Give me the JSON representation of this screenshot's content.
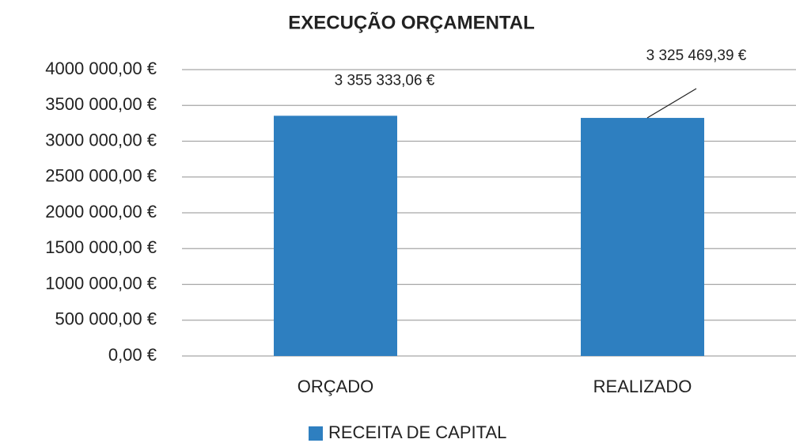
{
  "chart_data": {
    "type": "bar",
    "title": "EXECUÇÃO ORÇAMENTAL",
    "categories": [
      "ORÇADO",
      "REALIZADO"
    ],
    "series": [
      {
        "name": "RECEITA DE CAPITAL",
        "color": "#2e7fc0",
        "values": [
          3355333.06,
          3325469.39
        ],
        "value_labels": [
          "3 355 333,06 €",
          "3 325 469,39 €"
        ]
      }
    ],
    "ylim": [
      0,
      4000000
    ],
    "yticks": [
      {
        "value": 0,
        "label": "0,00 €"
      },
      {
        "value": 500000,
        "label": "500 000,00 €"
      },
      {
        "value": 1000000,
        "label": "1000 000,00 €"
      },
      {
        "value": 1500000,
        "label": "1500 000,00 €"
      },
      {
        "value": 2000000,
        "label": "2000 000,00 €"
      },
      {
        "value": 2500000,
        "label": "2500 000,00 €"
      },
      {
        "value": 3000000,
        "label": "3000 000,00 €"
      },
      {
        "value": 3500000,
        "label": "3500 000,00 €"
      },
      {
        "value": 4000000,
        "label": "4000 000,00 €"
      }
    ],
    "grid": true,
    "legend": "bottom"
  }
}
